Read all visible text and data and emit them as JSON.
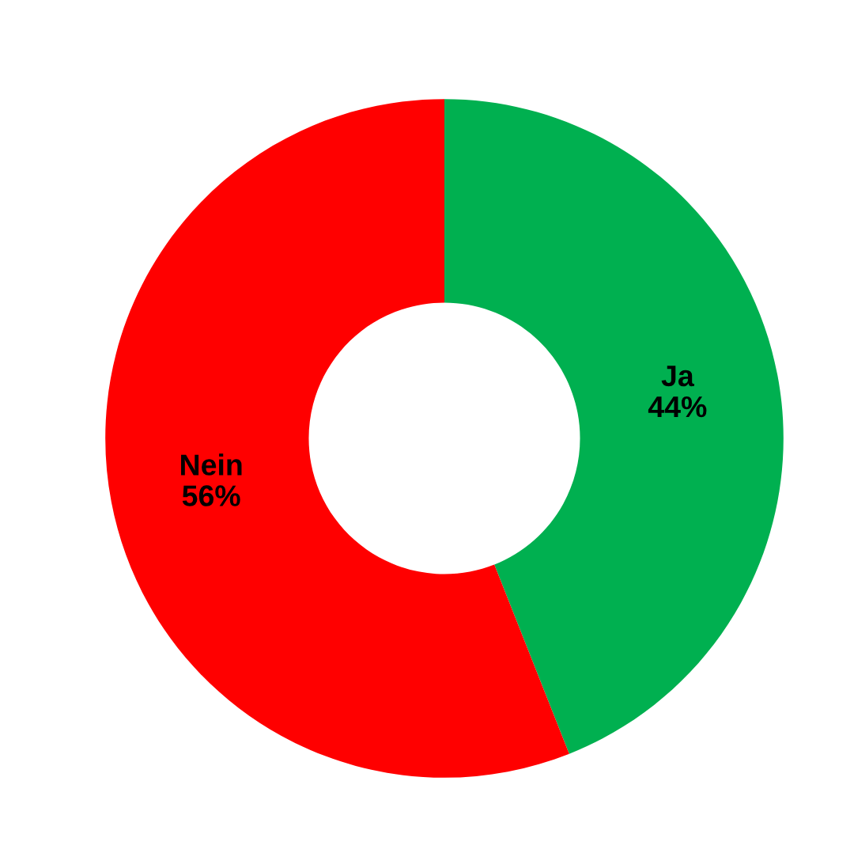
{
  "chart_data": {
    "type": "donut",
    "categories": [
      "Ja",
      "Nein"
    ],
    "values": [
      44,
      56
    ],
    "colors": [
      "#00b050",
      "#ff0000"
    ],
    "value_labels": [
      "44%",
      "56%"
    ],
    "legend": false
  }
}
